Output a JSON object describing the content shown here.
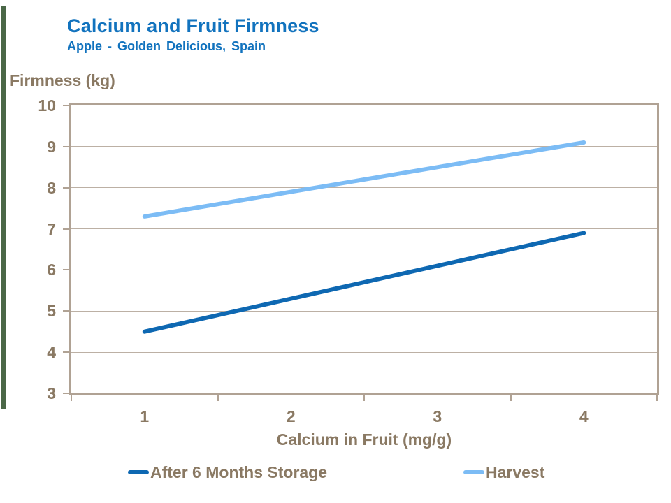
{
  "page": {
    "background": "#ffffff",
    "accent_bar_color": "#4a6747"
  },
  "colors": {
    "title_text": "#1273be",
    "axis_text": "#8a7963",
    "grid_line": "#bcb0a4",
    "frame": "#b0a294"
  },
  "chart_data": {
    "type": "line",
    "title": "Calcium and Fruit Firmness",
    "subtitle": "Apple - Golden Delicious, Spain",
    "xlabel": "Calcium in Fruit (mg/g)",
    "ylabel": "Firmness (kg)",
    "categories": [
      "1",
      "2",
      "3",
      "4"
    ],
    "series": [
      {
        "name": "After 6 Months Storage",
        "color": "#0e68b2",
        "values": [
          4.5,
          5.3,
          6.1,
          6.9
        ]
      },
      {
        "name": "Harvest",
        "color": "#7cbcf5",
        "values": [
          7.3,
          7.9,
          8.5,
          9.1
        ]
      }
    ],
    "ylim": [
      3,
      10
    ],
    "yticks": [
      10,
      9,
      8,
      7,
      6,
      5,
      4,
      3
    ],
    "grid": "horizontal",
    "legend_position": "bottom"
  }
}
